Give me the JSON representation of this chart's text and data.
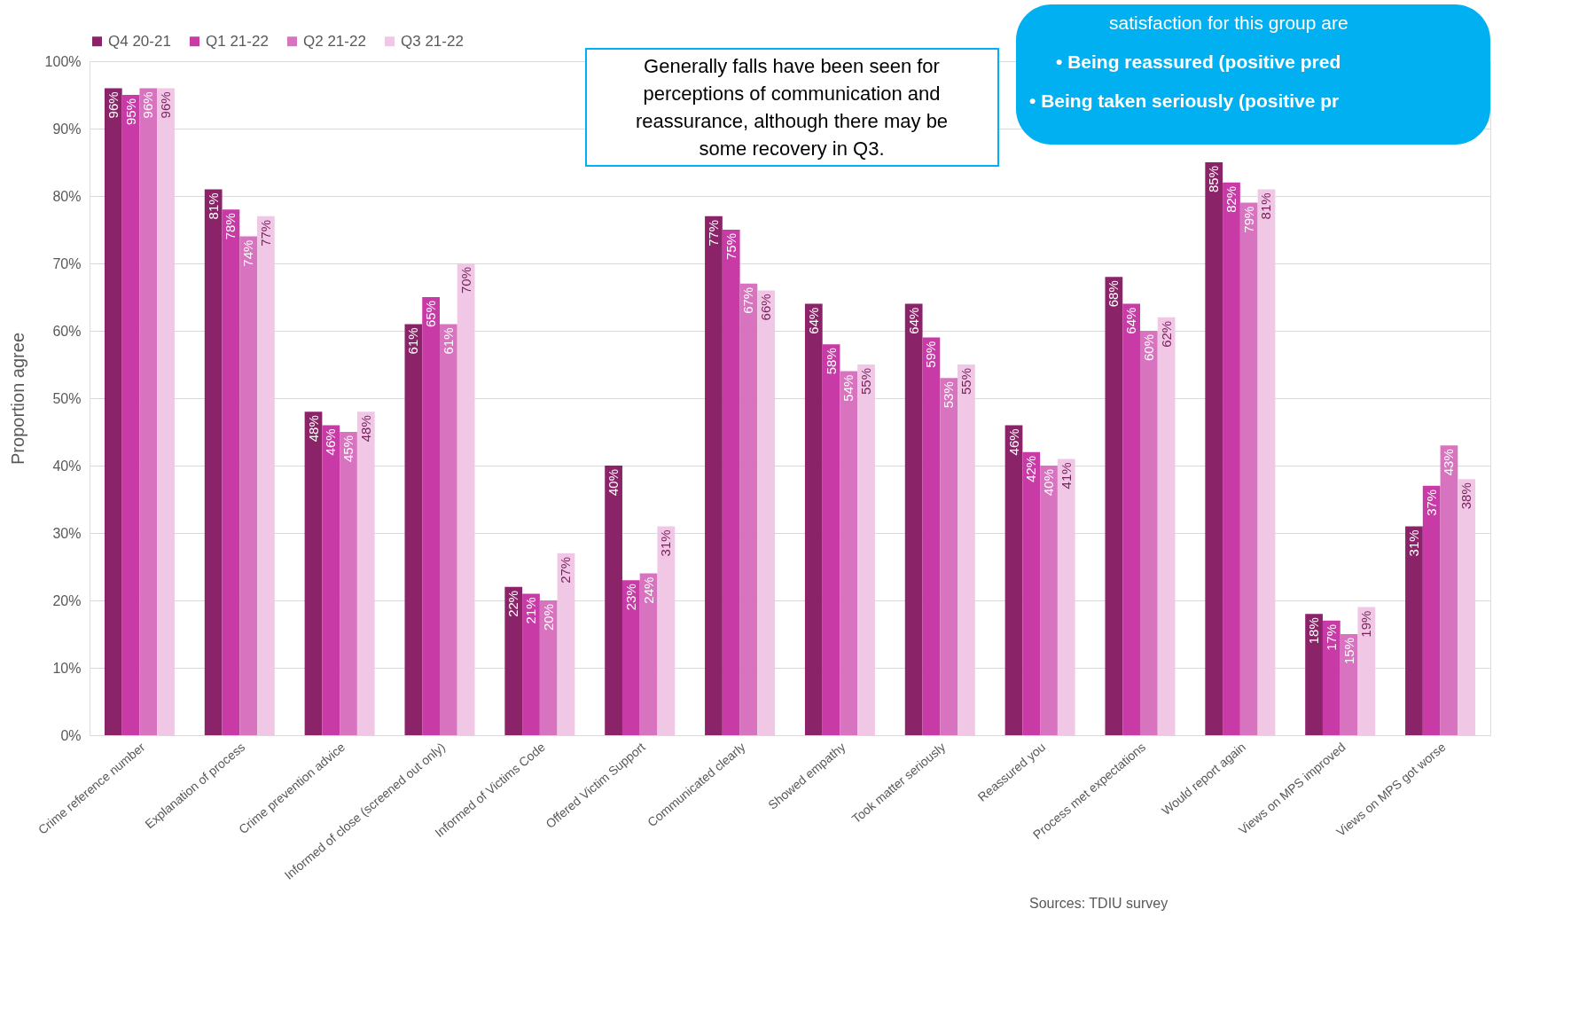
{
  "chart_data": {
    "type": "bar",
    "ylabel": "Proportion agree",
    "categories": [
      "Crime reference number",
      "Explanation of process",
      "Crime prevention advice",
      "Informed of close (screened out only)",
      "Informed of Victims Code",
      "Offered Victim Support",
      "Communicated clearly",
      "Showed empathy",
      "Took matter seriously",
      "Reassured you",
      "Process met expectations",
      "Would report again",
      "Views on MPS improved",
      "Views on MPS got worse"
    ],
    "series": [
      {
        "name": "Q4 20-21",
        "color": "#8b2369",
        "values": [
          96,
          81,
          48,
          61,
          22,
          40,
          77,
          64,
          64,
          46,
          68,
          85,
          18,
          31
        ],
        "value_labels": [
          "96%",
          "81%",
          "48%",
          "61%",
          "22%",
          "40%",
          "77%",
          "64%",
          "64%",
          "46%",
          "68%",
          "85%",
          "18%",
          "31%"
        ]
      },
      {
        "name": "Q1 21-22",
        "color": "#c83aa5",
        "values": [
          95,
          78,
          46,
          65,
          21,
          23,
          75,
          58,
          59,
          42,
          64,
          82,
          17,
          37
        ],
        "value_labels": [
          "95%",
          "78%",
          "46%",
          "65%",
          "21%",
          "23%",
          "75%",
          "58%",
          "59%",
          "42%",
          "64%",
          "82%",
          "17%",
          "37%"
        ]
      },
      {
        "name": "Q2 21-22",
        "color": "#d874bf",
        "values": [
          96,
          74,
          45,
          61,
          20,
          24,
          67,
          54,
          53,
          40,
          60,
          79,
          15,
          43
        ],
        "value_labels": [
          "96%",
          "74%",
          "45%",
          "61%",
          "20%",
          "24%",
          "67%",
          "54%",
          "53%",
          "40%",
          "60%",
          "79%",
          "15%",
          "43%"
        ]
      },
      {
        "name": "Q3 21-22",
        "color": "#f0c8e6",
        "values": [
          96,
          77,
          48,
          70,
          27,
          31,
          66,
          55,
          55,
          41,
          62,
          81,
          19,
          38
        ],
        "value_labels": [
          "96%",
          "77%",
          "48%",
          "70%",
          "27%",
          "31%",
          "66%",
          "55%",
          "55%",
          "41%",
          "62%",
          "81%",
          "19%",
          "38%"
        ]
      }
    ],
    "ylim": [
      0,
      100
    ],
    "yticks": [
      {
        "value": 0,
        "label": "0%"
      },
      {
        "value": 10,
        "label": "10%"
      },
      {
        "value": 20,
        "label": "20%"
      },
      {
        "value": 30,
        "label": "30%"
      },
      {
        "value": 40,
        "label": "40%"
      },
      {
        "value": 50,
        "label": "50%"
      },
      {
        "value": 60,
        "label": "60%"
      },
      {
        "value": 70,
        "label": "70%"
      },
      {
        "value": 80,
        "label": "80%"
      },
      {
        "value": 90,
        "label": "90%"
      },
      {
        "value": 100,
        "label": "100%"
      }
    ],
    "grid": "y",
    "legend": "top",
    "annotations": [
      "Generally falls have been seen for\nperceptions of communication and\nreassurance, although there may be\nsome recovery in Q3.",
      "satisfaction for this group are",
      "•  Being reassured (positive pred",
      "•  Being taken seriously (positive pr",
      "Sources: TDIU survey"
    ]
  }
}
